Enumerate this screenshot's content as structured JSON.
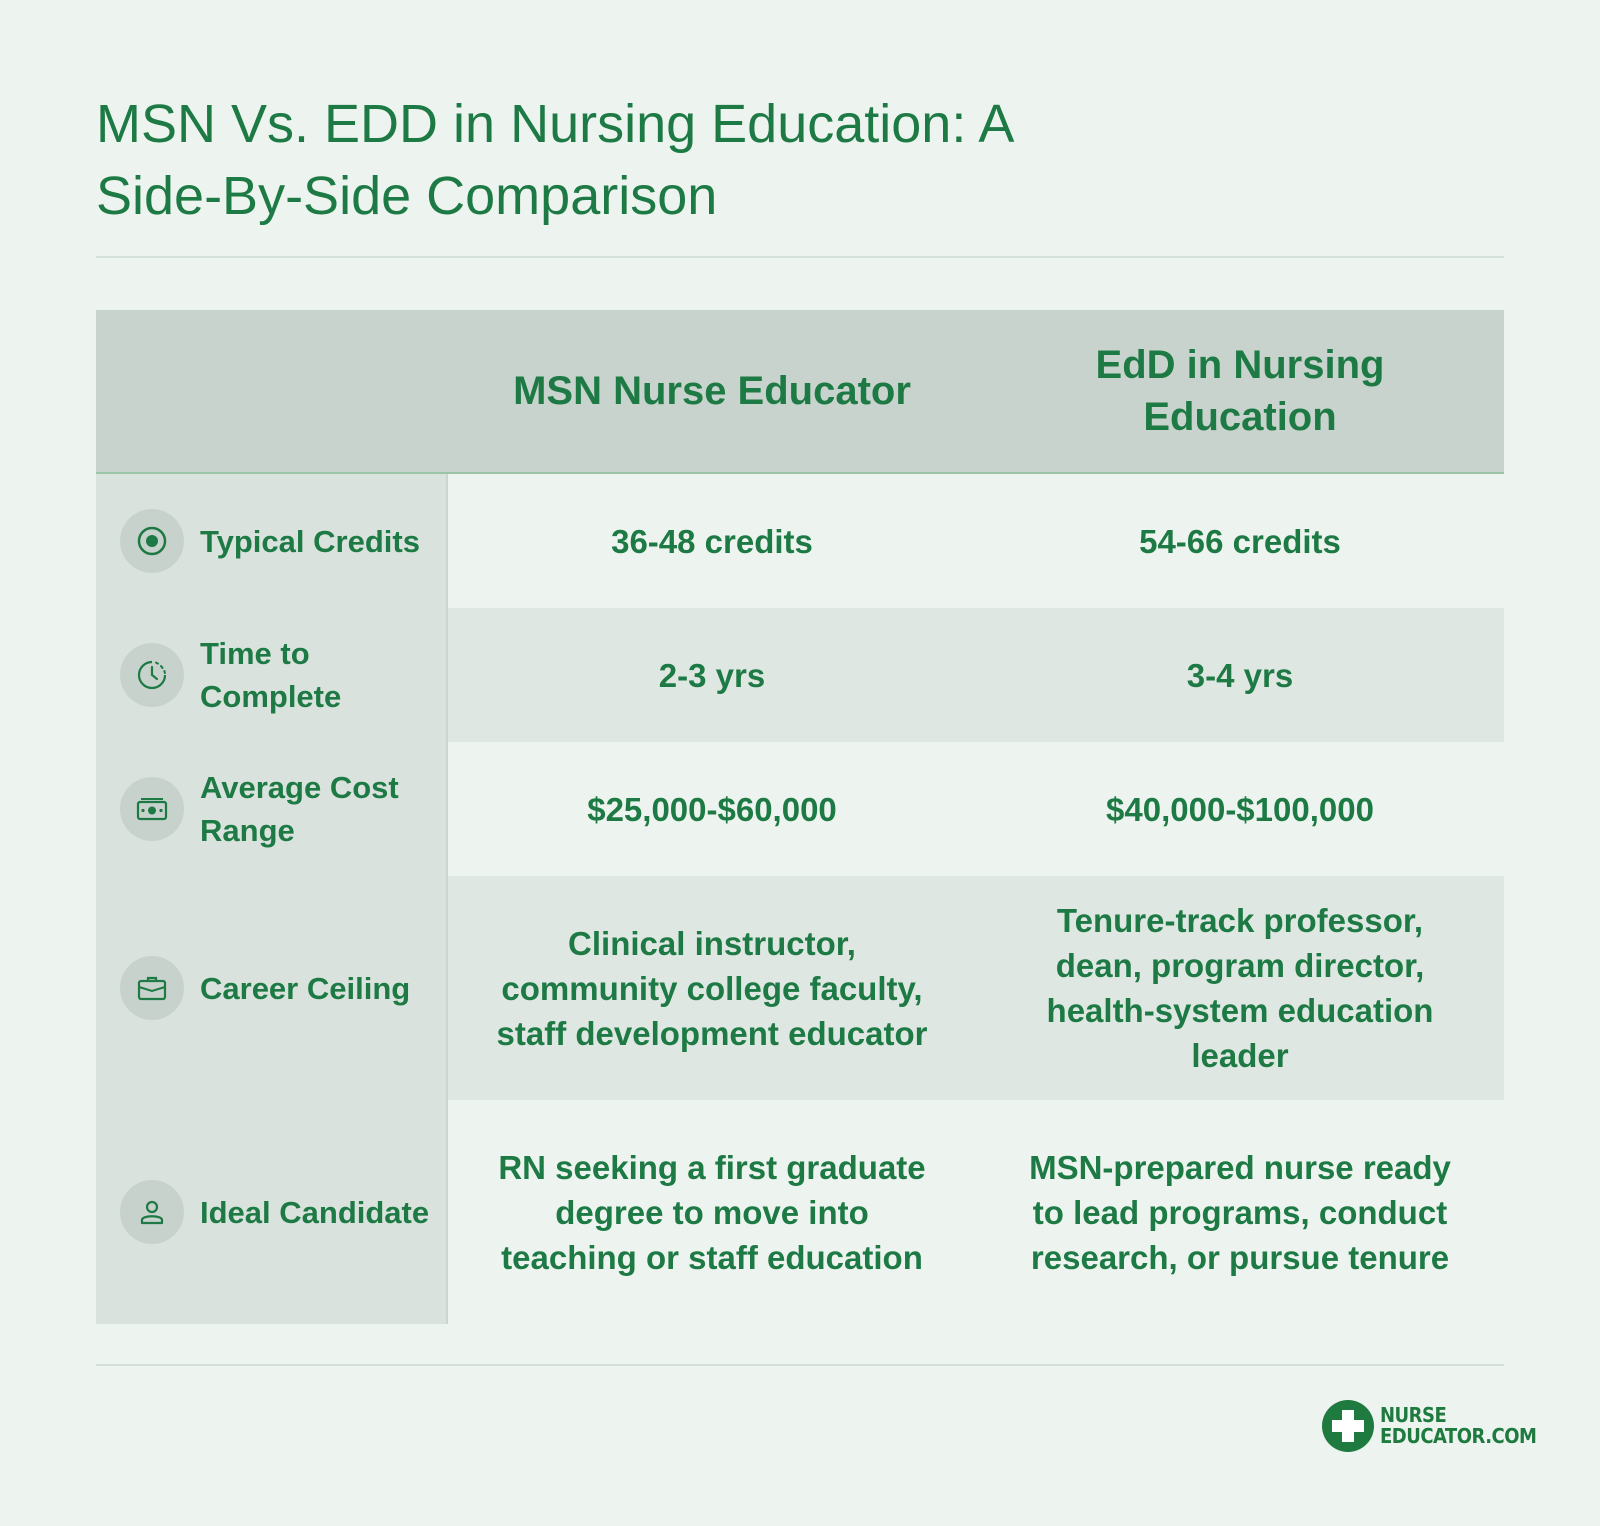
{
  "title": "MSN Vs. EDD in Nursing Education: A Side-By-Side Comparison",
  "columns": {
    "msn": "MSN Nurse Educator",
    "edd": "EdD in Nursing Education"
  },
  "rows": [
    {
      "label": "Typical Credits",
      "icon": "target-icon",
      "msn": "36-48 credits",
      "edd": "54-66 credits"
    },
    {
      "label": "Time to Complete",
      "icon": "clock-icon",
      "msn": "2-3 yrs",
      "edd": "3-4 yrs"
    },
    {
      "label": "Average Cost Range",
      "icon": "money-icon",
      "msn": "$25,000-$60,000",
      "edd": "$40,000-$100,000"
    },
    {
      "label": "Career Ceiling",
      "icon": "briefcase-icon",
      "msn": "Clinical instructor, community college faculty, staff development educator",
      "edd": "Tenure-track professor, dean, program director, health-system education leader"
    },
    {
      "label": "Ideal Candidate",
      "icon": "person-icon",
      "msn": "RN seeking a first graduate degree to move into teaching or staff education",
      "edd": "MSN-prepared nurse ready to lead programs, conduct research, or pursue tenure"
    }
  ],
  "logo": {
    "line1": "NURSE",
    "line2": "EDUCATOR.COM"
  },
  "colors": {
    "accent": "#1e7a44",
    "background": "#edf4ef",
    "header_bg": "#c9d3cd"
  }
}
